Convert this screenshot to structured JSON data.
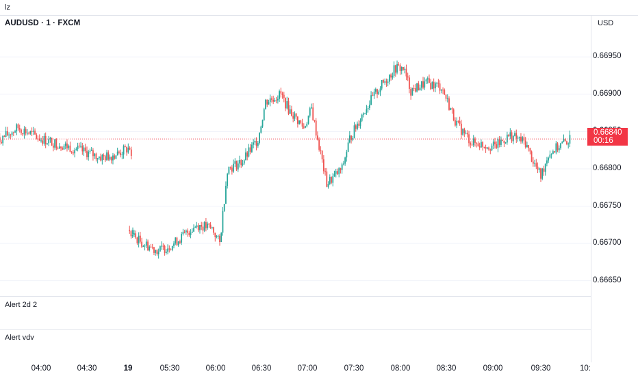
{
  "header": {
    "layout_label": "lz",
    "symbol": "AUDUSD · 1 · FXCM",
    "currency": "USD"
  },
  "indicators": [
    {
      "label": "Alert 2d 2"
    },
    {
      "label": "Alert vdv"
    }
  ],
  "last_price": {
    "value": "0.66840",
    "countdown": "00:16"
  },
  "colors": {
    "up": "#26a69a",
    "down": "#ef5350",
    "last_price": "#f23645",
    "grid": "#f0f3fa"
  },
  "chart_data": {
    "type": "candlestick",
    "y_axis": {
      "ticks": [
        "0.66950",
        "0.66900",
        "0.66850",
        "0.66800",
        "0.66750",
        "0.66700",
        "0.66650"
      ],
      "ylim": [
        0.66635,
        0.66975
      ]
    },
    "x_axis": {
      "ticks": [
        "04:00",
        "04:30",
        "19",
        "05:30",
        "06:00",
        "06:30",
        "07:00",
        "07:30",
        "08:00",
        "08:30",
        "09:00",
        "09:30",
        "10:"
      ]
    },
    "session_gap": "19",
    "price_anchors": [
      {
        "time": "03:30",
        "price": 0.66835
      },
      {
        "time": "03:45",
        "price": 0.66855
      },
      {
        "time": "04:00",
        "price": 0.6684
      },
      {
        "time": "04:20",
        "price": 0.66828
      },
      {
        "time": "04:40",
        "price": 0.66815
      },
      {
        "time": "04:50",
        "price": 0.6682
      },
      {
        "time": "04:58",
        "price": 0.66828
      },
      {
        "time": "05:00",
        "price": 0.66795
      },
      {
        "time": "05:00",
        "price": 0.66715
      },
      {
        "time": "05:10",
        "price": 0.667
      },
      {
        "time": "05:20",
        "price": 0.6669
      },
      {
        "time": "05:30",
        "price": 0.667
      },
      {
        "time": "05:45",
        "price": 0.66725
      },
      {
        "time": "05:55",
        "price": 0.6672
      },
      {
        "time": "06:00",
        "price": 0.667
      },
      {
        "time": "06:05",
        "price": 0.668
      },
      {
        "time": "06:15",
        "price": 0.6681
      },
      {
        "time": "06:25",
        "price": 0.6684
      },
      {
        "time": "06:30",
        "price": 0.6689
      },
      {
        "time": "06:40",
        "price": 0.669
      },
      {
        "time": "06:45",
        "price": 0.6688
      },
      {
        "time": "06:55",
        "price": 0.66855
      },
      {
        "time": "07:00",
        "price": 0.6688
      },
      {
        "time": "07:05",
        "price": 0.6683
      },
      {
        "time": "07:10",
        "price": 0.6678
      },
      {
        "time": "07:20",
        "price": 0.668
      },
      {
        "time": "07:25",
        "price": 0.6684
      },
      {
        "time": "07:35",
        "price": 0.6688
      },
      {
        "time": "07:45",
        "price": 0.6691
      },
      {
        "time": "07:55",
        "price": 0.66935
      },
      {
        "time": "08:00",
        "price": 0.66935
      },
      {
        "time": "08:05",
        "price": 0.66905
      },
      {
        "time": "08:15",
        "price": 0.66915
      },
      {
        "time": "08:25",
        "price": 0.6691
      },
      {
        "time": "08:35",
        "price": 0.6686
      },
      {
        "time": "08:45",
        "price": 0.66835
      },
      {
        "time": "09:00",
        "price": 0.6683
      },
      {
        "time": "09:10",
        "price": 0.66845
      },
      {
        "time": "09:20",
        "price": 0.66835
      },
      {
        "time": "09:25",
        "price": 0.6681
      },
      {
        "time": "09:30",
        "price": 0.6679
      },
      {
        "time": "09:35",
        "price": 0.6682
      },
      {
        "time": "09:45",
        "price": 0.66835
      },
      {
        "time": "09:50",
        "price": 0.6684
      }
    ]
  }
}
